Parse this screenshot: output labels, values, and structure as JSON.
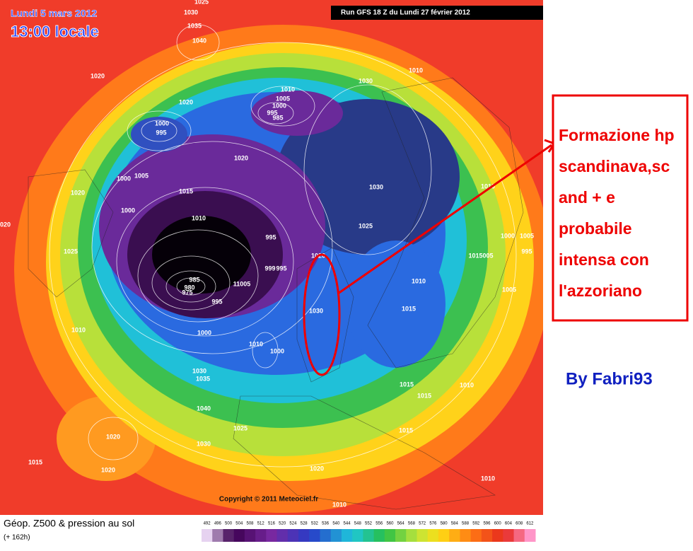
{
  "header": {
    "date": "Lundi 5 mars 2012",
    "time": "13:00 locale",
    "run": "Run GFS 18 Z du Lundi 27 février 2012"
  },
  "map": {
    "pressure_labels": [
      "1025",
      "1030",
      "1035",
      "1040",
      "1020",
      "1020",
      "1010",
      "1005",
      "1000",
      "995",
      "985",
      "1030",
      "1010",
      "1000",
      "995",
      "1005",
      "1000",
      "1020",
      "1015",
      "1020",
      "1000",
      "1010",
      "1030",
      "1025",
      "995",
      "1025",
      "1020",
      "999",
      "995",
      "985",
      "980",
      "975",
      "995",
      "11005",
      "1030",
      "1010",
      "1000",
      "1010",
      "1000",
      "1015",
      "1020",
      "1010",
      "1000",
      "1005",
      "995",
      "1015005",
      "1005",
      "1010",
      "1015",
      "1010",
      "1015",
      "1030",
      "1035",
      "1040",
      "1025",
      "1030",
      "1020",
      "1015",
      "1020",
      "1020",
      "1015",
      "1010",
      "1010"
    ],
    "copyright": "Copyright © 2011 Meteociel.fr"
  },
  "legend": {
    "title": "Géop. Z500 & pression au sol",
    "subtitle": "(+ 162h)",
    "scale": [
      492,
      496,
      500,
      504,
      508,
      512,
      516,
      520,
      524,
      528,
      532,
      536,
      540,
      544,
      548,
      552,
      556,
      560,
      564,
      568,
      572,
      576,
      580,
      584,
      588,
      592,
      596,
      600,
      604,
      608,
      612
    ]
  },
  "annotation": {
    "lines": [
      "Formazione hp",
      "scandinava,sc",
      "and + e",
      "probabile",
      "intensa con",
      "l'azzoriano"
    ],
    "author": "By Fabri93"
  }
}
